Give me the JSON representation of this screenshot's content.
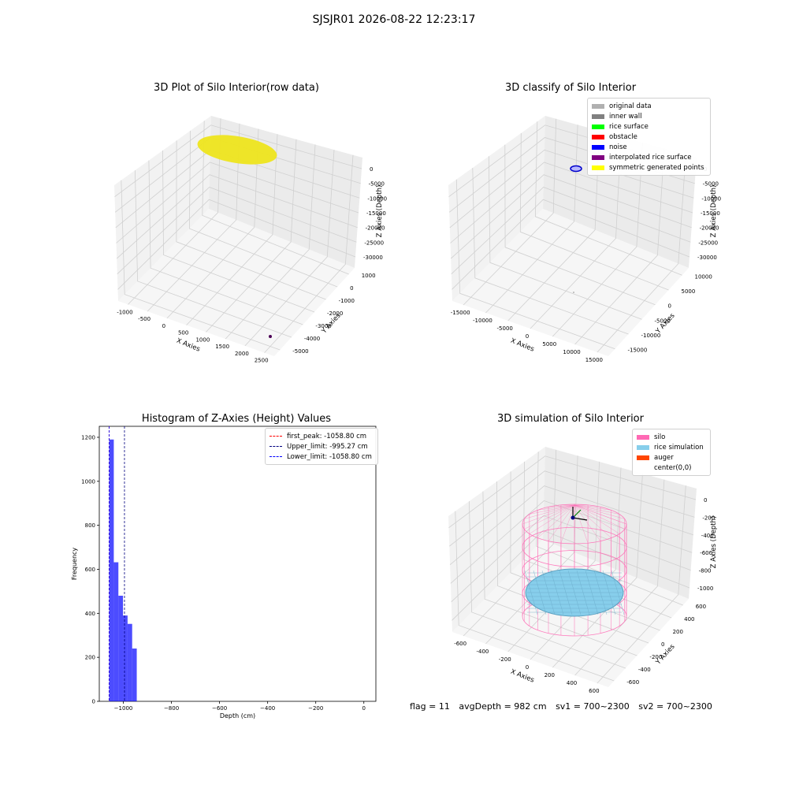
{
  "suptitle": "SJSJR01 2026-08-22 12:23:17",
  "panel_titles": {
    "raw": "3D Plot of Silo Interior(row data)",
    "classify": "3D classify of Silo Interior",
    "histogram": "Histogram of Z-Axies (Height) Values",
    "simulation": "3D simulation of Silo Interior"
  },
  "footer": {
    "flag": "flag = 11",
    "avg_depth": "avgDepth = 982 cm",
    "sv1": "sv1 = 700~2300",
    "sv2": "sv2 = 700~2300"
  },
  "legends": {
    "classify": [
      {
        "label": "original data",
        "color": "#b0b0b0"
      },
      {
        "label": "inner wall",
        "color": "#808080"
      },
      {
        "label": "rice surface",
        "color": "#00ff00"
      },
      {
        "label": "obstacle",
        "color": "#ff0000"
      },
      {
        "label": "noise",
        "color": "#0000ff"
      },
      {
        "label": "interpolated rice surface",
        "color": "#800080"
      },
      {
        "label": "symmetric generated points",
        "color": "#ffff00"
      }
    ],
    "histogram": [
      {
        "label": "first_peak: -1058.80 cm",
        "color": "#ff0000"
      },
      {
        "label": "Upper_limit: -995.27 cm",
        "color": "#000080"
      },
      {
        "label": "Lower_limit: -1058.80 cm",
        "color": "#0000ff"
      }
    ],
    "simulation": [
      {
        "label": "silo",
        "color": "#ff69b4"
      },
      {
        "label": "rice simulation",
        "color": "#87ceeb"
      },
      {
        "label": "auger",
        "color": "#ff4500"
      },
      {
        "label": "center(0,0)",
        "color": ""
      }
    ]
  },
  "axes3d": {
    "raw": {
      "xlabel": "X Axies",
      "ylabel": "Y Axies",
      "zlabel": "Z Axies (Depth)",
      "xticks": [
        "-1000",
        "-500",
        "0",
        "500",
        "1000",
        "1500",
        "2000",
        "2500"
      ],
      "yticks": [
        "1000",
        "0",
        "-1000",
        "-2000",
        "-3000",
        "-4000",
        "-5000"
      ],
      "zticks": [
        "0",
        "-5000",
        "-10000",
        "-15000",
        "-20000",
        "-25000",
        "-30000"
      ]
    },
    "classify": {
      "xlabel": "X Axies",
      "ylabel": "Y Axies",
      "zlabel": "Z Axies (Depth)",
      "xticks": [
        "-15000",
        "-10000",
        "-5000",
        "0",
        "5000",
        "10000",
        "15000"
      ],
      "yticks": [
        "10000",
        "5000",
        "0",
        "-5000",
        "-10000",
        "-15000"
      ],
      "zticks": [
        "0",
        "-5000",
        "-10000",
        "-15000",
        "-20000",
        "-25000",
        "-30000"
      ]
    },
    "simulation": {
      "xlabel": "X Axies",
      "ylabel": "Y Axies",
      "zlabel": "Z Axies (Depth)",
      "xticks": [
        "-600",
        "-400",
        "-200",
        "0",
        "200",
        "400",
        "600"
      ],
      "yticks": [
        "600",
        "400",
        "200",
        "0",
        "-200",
        "-400",
        "-600"
      ],
      "zticks": [
        "0",
        "-200",
        "-400",
        "-600",
        "-800",
        "-1000"
      ]
    }
  },
  "chart_data": [
    {
      "type": "scatter",
      "title": "3D Plot of Silo Interior(row data)",
      "xlabel": "X Axies",
      "ylabel": "Y Axies",
      "zlabel": "Z Axies (Depth)",
      "xlim": [
        -1000,
        2500
      ],
      "ylim": [
        -5000,
        1000
      ],
      "zlim": [
        -30000,
        0
      ],
      "series": [
        {
          "name": "",
          "color": "#eee51e"
        }
      ]
    },
    {
      "type": "scatter",
      "title": "3D classify of Silo Interior",
      "xlabel": "X Axies",
      "ylabel": "Y Axies",
      "zlabel": "Z Axies (Depth)",
      "xlim": [
        -15000,
        15000
      ],
      "ylim": [
        -15000,
        10000
      ],
      "zlim": [
        -30000,
        0
      ],
      "series": [
        {
          "name": "original data",
          "color": "#b0b0b0"
        },
        {
          "name": "inner wall",
          "color": "#808080"
        },
        {
          "name": "rice surface",
          "color": "#00ff00"
        },
        {
          "name": "obstacle",
          "color": "#ff0000"
        },
        {
          "name": "noise",
          "color": "#0000ff"
        },
        {
          "name": "interpolated rice surface",
          "color": "#800080"
        },
        {
          "name": "symmetric generated points",
          "color": "#ffff00"
        }
      ]
    },
    {
      "type": "bar",
      "title": "Histogram of Z-Axies (Height) Values",
      "xlabel": "Depth (cm)",
      "ylabel": "Frequency",
      "xlim": [
        -1100,
        50
      ],
      "ylim": [
        0,
        1250
      ],
      "xticks": [
        -1000,
        -800,
        -600,
        -400,
        -200,
        0
      ],
      "yticks": [
        0,
        200,
        400,
        600,
        800,
        1000,
        1200
      ],
      "bins": [
        {
          "x0": -1058.8,
          "x1": -1039.7,
          "value": 1190
        },
        {
          "x0": -1039.7,
          "x1": -1020.6,
          "value": 632
        },
        {
          "x0": -1020.6,
          "x1": -1001.5,
          "value": 480
        },
        {
          "x0": -1001.5,
          "x1": -982.4,
          "value": 390
        },
        {
          "x0": -982.4,
          "x1": -963.3,
          "value": 352
        },
        {
          "x0": -963.3,
          "x1": -944.2,
          "value": 240
        }
      ],
      "bar_color": "#0000ff",
      "vlines": [
        {
          "name": "first_peak: -1058.80 cm",
          "x": -1058.8,
          "color": "#ff0000"
        },
        {
          "name": "Upper_limit: -995.27 cm",
          "x": -995.27,
          "color": "#000080"
        },
        {
          "name": "Lower_limit: -1058.80 cm",
          "x": -1058.8,
          "color": "#0000ff"
        }
      ],
      "legend": "top-right"
    },
    {
      "type": "scatter",
      "title": "3D simulation of Silo Interior",
      "xlabel": "X Axies",
      "ylabel": "Y Axies",
      "zlabel": "Z Axies (Depth)",
      "xlim": [
        -600,
        600
      ],
      "ylim": [
        -600,
        600
      ],
      "zlim": [
        -1000,
        0
      ],
      "series": [
        {
          "name": "silo",
          "color": "#ff69b4"
        },
        {
          "name": "rice simulation",
          "color": "#87ceeb"
        },
        {
          "name": "auger",
          "color": "#ff4500"
        },
        {
          "name": "center(0,0)",
          "color": ""
        }
      ]
    }
  ]
}
